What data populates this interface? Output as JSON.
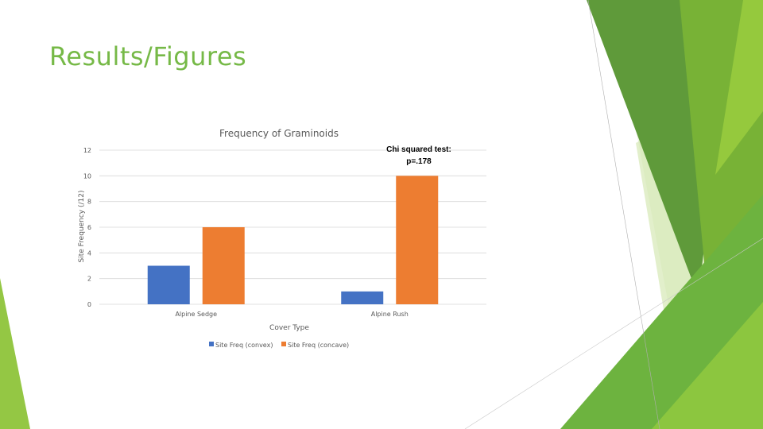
{
  "slide": {
    "title": "Results/Figures"
  },
  "theme": {
    "accent": "#76b947",
    "convex_color": "#4472c4",
    "concave_color": "#ed7d31"
  },
  "chart_data": {
    "type": "bar",
    "title": "Frequency of Graminoids",
    "xlabel": "Cover Type",
    "ylabel": "Site Frequency (/12)",
    "categories": [
      "Alpine Sedge",
      "Alpine Rush"
    ],
    "series": [
      {
        "name": "Site Freq (convex)",
        "values": [
          3,
          1
        ],
        "color": "#4472c4"
      },
      {
        "name": "Site Freq (concave)",
        "values": [
          6,
          10
        ],
        "color": "#ed7d31"
      }
    ],
    "ylim": [
      0,
      12
    ],
    "yticks": [
      0,
      2,
      4,
      6,
      8,
      10,
      12
    ],
    "grid": true,
    "legend": "bottom",
    "annotation": {
      "line1": "Chi squared test:",
      "line2": "p=.178"
    }
  }
}
